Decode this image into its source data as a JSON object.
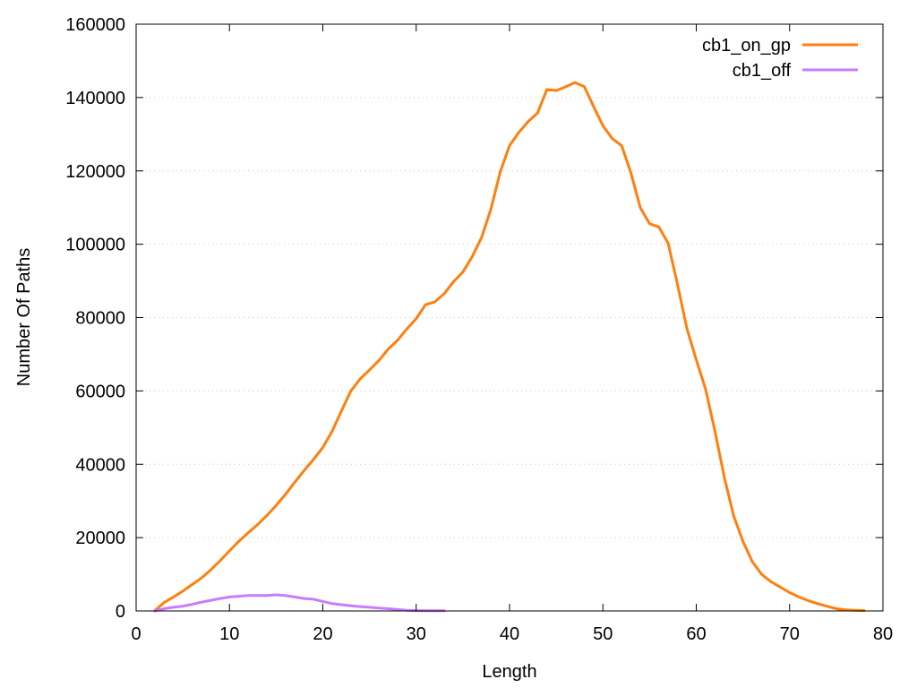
{
  "chart_data": {
    "type": "line",
    "title": "",
    "xlabel": "Length",
    "ylabel": "Number Of Paths",
    "xlim": [
      0,
      80
    ],
    "ylim": [
      0,
      160000
    ],
    "xticks": [
      "0",
      "10",
      "20",
      "30",
      "40",
      "50",
      "60",
      "70",
      "80"
    ],
    "yticks": [
      "0",
      "20000",
      "40000",
      "60000",
      "80000",
      "100000",
      "120000",
      "140000",
      "160000"
    ],
    "grid": "horizontal dotted",
    "legend_position": "top-right",
    "series": [
      {
        "name": "cb1_on_gp",
        "color": "#ff7f0e",
        "x": [
          2,
          3,
          4,
          5,
          6,
          7,
          8,
          9,
          10,
          11,
          12,
          13,
          14,
          15,
          16,
          17,
          18,
          19,
          20,
          21,
          22,
          23,
          24,
          25,
          26,
          27,
          28,
          29,
          30,
          31,
          32,
          33,
          34,
          35,
          36,
          37,
          38,
          39,
          40,
          41,
          42,
          43,
          44,
          45,
          46,
          47,
          48,
          49,
          50,
          51,
          52,
          53,
          54,
          55,
          56,
          57,
          58,
          59,
          60,
          61,
          62,
          63,
          64,
          65,
          66,
          67,
          68,
          69,
          70,
          71,
          72,
          73,
          74,
          75,
          76,
          77,
          78
        ],
        "values": [
          100,
          2300,
          3800,
          5400,
          7200,
          9000,
          11200,
          13700,
          16400,
          19000,
          21300,
          23500,
          26000,
          28800,
          31800,
          35100,
          38300,
          41300,
          44600,
          49000,
          54600,
          60000,
          63300,
          65700,
          68300,
          71400,
          73800,
          76900,
          79700,
          83500,
          84300,
          86500,
          89800,
          92400,
          96600,
          101800,
          109500,
          119700,
          126900,
          130500,
          133500,
          135800,
          142200,
          141900,
          142900,
          144100,
          143000,
          137600,
          132300,
          128800,
          126900,
          119500,
          110000,
          105600,
          104700,
          100200,
          89000,
          77000,
          68500,
          60500,
          49000,
          36500,
          26000,
          19000,
          13500,
          10000,
          8000,
          6500,
          5000,
          3800,
          2800,
          2000,
          1300,
          600,
          300,
          200,
          100
        ]
      },
      {
        "name": "cb1_off",
        "color": "#c77cff",
        "x": [
          2,
          3,
          4,
          5,
          6,
          7,
          8,
          9,
          10,
          11,
          12,
          13,
          14,
          15,
          16,
          17,
          18,
          19,
          20,
          21,
          22,
          23,
          24,
          25,
          26,
          27,
          28,
          29,
          30,
          31,
          32,
          33
        ],
        "values": [
          0,
          600,
          1000,
          1300,
          1800,
          2400,
          2900,
          3400,
          3800,
          4000,
          4200,
          4200,
          4200,
          4400,
          4200,
          3800,
          3400,
          3200,
          2600,
          2000,
          1700,
          1400,
          1200,
          1000,
          800,
          600,
          400,
          200,
          100,
          80,
          60,
          40
        ]
      }
    ]
  }
}
